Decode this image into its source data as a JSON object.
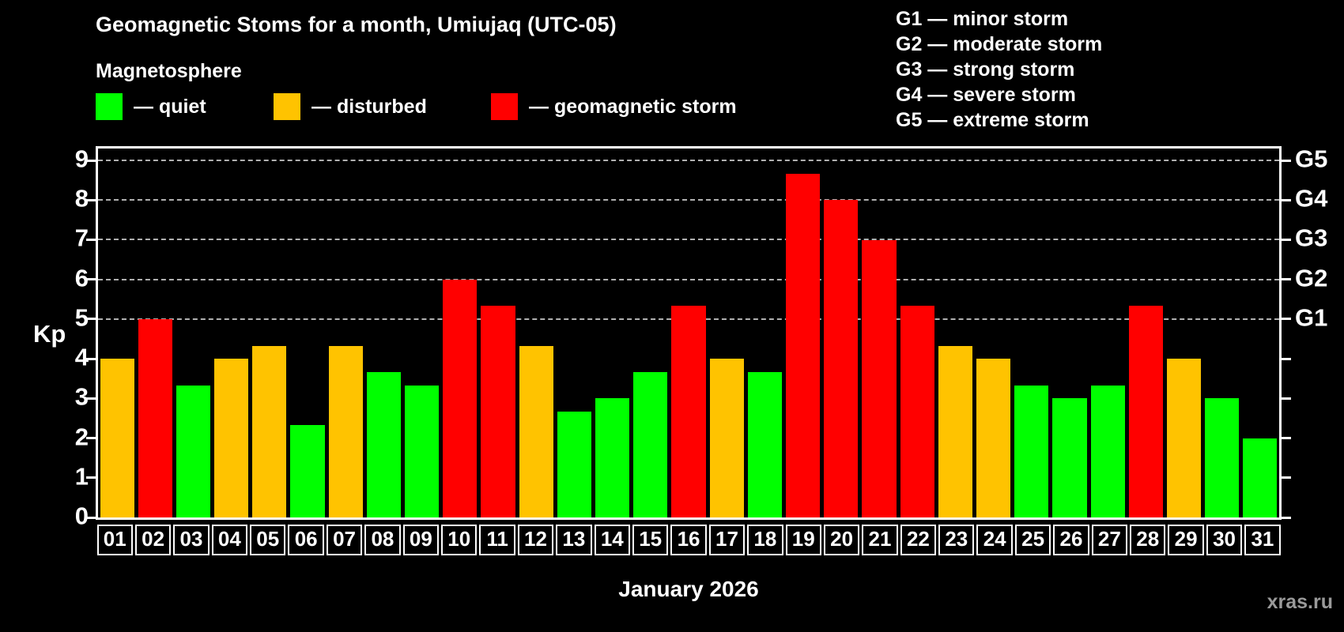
{
  "title": "Geomagnetic Stoms for a month, Umiujaq (UTC-05)",
  "legend": {
    "heading": "Magnetosphere",
    "items": [
      {
        "key": "quiet",
        "label": "— quiet",
        "color": "#00ff00"
      },
      {
        "key": "disturbed",
        "label": "— disturbed",
        "color": "#ffc300"
      },
      {
        "key": "storm",
        "label": "— geomagnetic storm",
        "color": "#ff0000"
      }
    ]
  },
  "storm_scale_legend": [
    "G1 — minor storm",
    "G2 — moderate storm",
    "G3 — strong storm",
    "G4 — severe storm",
    "G5 — extreme storm"
  ],
  "status_colors": {
    "quiet": "#00ff00",
    "disturbed": "#ffc300",
    "storm": "#ff0000"
  },
  "chart_data": {
    "type": "bar",
    "title": "Geomagnetic Stoms for a month, Umiujaq (UTC-05)",
    "ylabel": "Kp",
    "xlabel": "January 2026",
    "ylim": [
      0,
      9.3
    ],
    "yticks": [
      0,
      1,
      2,
      3,
      4,
      5,
      6,
      7,
      8,
      9
    ],
    "gridlines": [
      5,
      6,
      7,
      8,
      9
    ],
    "grid_style": "dashed",
    "right_axis": [
      {
        "value": 5,
        "label": "G1"
      },
      {
        "value": 6,
        "label": "G2"
      },
      {
        "value": 7,
        "label": "G3"
      },
      {
        "value": 8,
        "label": "G4"
      },
      {
        "value": 9,
        "label": "G5"
      }
    ],
    "categories": [
      "01",
      "02",
      "03",
      "04",
      "05",
      "06",
      "07",
      "08",
      "09",
      "10",
      "11",
      "12",
      "13",
      "14",
      "15",
      "16",
      "17",
      "18",
      "19",
      "20",
      "21",
      "22",
      "23",
      "24",
      "25",
      "26",
      "27",
      "28",
      "29",
      "30",
      "31"
    ],
    "values": [
      4.0,
      5.0,
      3.33,
      4.0,
      4.33,
      2.33,
      4.33,
      3.67,
      3.33,
      6.0,
      5.33,
      4.33,
      2.67,
      3.0,
      3.67,
      5.33,
      4.0,
      3.67,
      8.67,
      8.0,
      7.0,
      5.33,
      4.33,
      4.0,
      3.33,
      3.0,
      3.33,
      5.33,
      4.0,
      3.0,
      2.0
    ],
    "statuses": [
      "disturbed",
      "storm",
      "quiet",
      "disturbed",
      "disturbed",
      "quiet",
      "disturbed",
      "quiet",
      "quiet",
      "storm",
      "storm",
      "disturbed",
      "quiet",
      "quiet",
      "quiet",
      "storm",
      "disturbed",
      "quiet",
      "storm",
      "storm",
      "storm",
      "storm",
      "disturbed",
      "disturbed",
      "quiet",
      "quiet",
      "quiet",
      "storm",
      "disturbed",
      "quiet",
      "quiet"
    ]
  },
  "footer": {
    "caption": "January 2026",
    "watermark": "xras.ru"
  }
}
